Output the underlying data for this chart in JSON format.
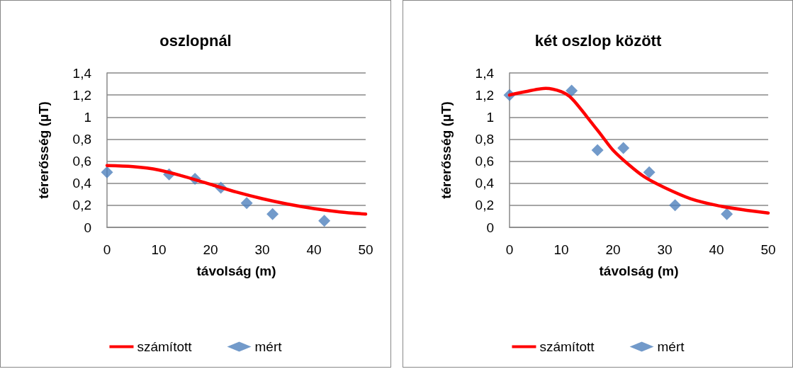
{
  "chart_data": [
    {
      "type": "line",
      "title": "oszlopnál",
      "xlabel": "távolság (m)",
      "ylabel": "térerősség (µT)",
      "xlim": [
        0,
        50
      ],
      "xticks": [
        0,
        10,
        20,
        30,
        40,
        50
      ],
      "ylim": [
        0,
        1.4
      ],
      "yticks": [
        {
          "value": 0,
          "label": "0"
        },
        {
          "value": 0.2,
          "label": "0,2"
        },
        {
          "value": 0.4,
          "label": "0,4"
        },
        {
          "value": 0.6,
          "label": "0,6"
        },
        {
          "value": 0.8,
          "label": "0,8"
        },
        {
          "value": 1,
          "label": "1"
        },
        {
          "value": 1.2,
          "label": "1,2"
        },
        {
          "value": 1.4,
          "label": "1,4"
        }
      ],
      "grid": "y",
      "legend": "bottom",
      "series": [
        {
          "name": "számított",
          "color": "#ff0000",
          "marker": "none",
          "x": [
            0,
            5,
            10,
            15,
            20,
            25,
            30,
            35,
            40,
            45,
            50
          ],
          "values": [
            0.56,
            0.55,
            0.52,
            0.46,
            0.39,
            0.32,
            0.26,
            0.21,
            0.17,
            0.14,
            0.12
          ]
        },
        {
          "name": "mért",
          "type": "scatter",
          "color": "#4f81bd",
          "marker": "diamond",
          "x": [
            0,
            12,
            17,
            22,
            27,
            32,
            42
          ],
          "values": [
            0.5,
            0.48,
            0.44,
            0.36,
            0.22,
            0.12,
            0.06
          ]
        }
      ]
    },
    {
      "type": "line",
      "title": "két oszlop között",
      "xlabel": "távolság (m)",
      "ylabel": "térerősség (µT)",
      "xlim": [
        0,
        50
      ],
      "xticks": [
        0,
        10,
        20,
        30,
        40,
        50
      ],
      "ylim": [
        0,
        1.4
      ],
      "yticks": [
        {
          "value": 0,
          "label": "0"
        },
        {
          "value": 0.2,
          "label": "0,2"
        },
        {
          "value": 0.4,
          "label": "0,4"
        },
        {
          "value": 0.6,
          "label": "0,6"
        },
        {
          "value": 0.8,
          "label": "0,8"
        },
        {
          "value": 1,
          "label": "1"
        },
        {
          "value": 1.2,
          "label": "1,2"
        },
        {
          "value": 1.4,
          "label": "1,4"
        }
      ],
      "grid": "y",
      "legend": "bottom",
      "series": [
        {
          "name": "számított",
          "color": "#ff0000",
          "marker": "none",
          "x": [
            0,
            3,
            7,
            10,
            12,
            15,
            18,
            20,
            23,
            26,
            30,
            35,
            40,
            45,
            50
          ],
          "values": [
            1.2,
            1.23,
            1.26,
            1.23,
            1.17,
            1.0,
            0.82,
            0.7,
            0.57,
            0.46,
            0.36,
            0.26,
            0.2,
            0.16,
            0.13
          ]
        },
        {
          "name": "mért",
          "type": "scatter",
          "color": "#4f81bd",
          "marker": "diamond",
          "x": [
            0,
            12,
            17,
            22,
            27,
            32,
            42
          ],
          "values": [
            1.2,
            1.24,
            0.7,
            0.72,
            0.5,
            0.2,
            0.12
          ]
        }
      ]
    }
  ]
}
